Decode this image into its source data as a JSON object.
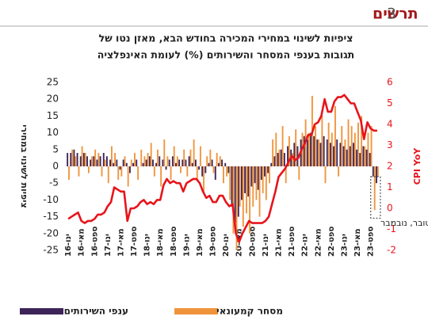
{
  "chart_data": {
    "type": "bar_line",
    "figure_label": "תרשים",
    "figure_number": 3,
    "title": [
      "ציפיות לשינוי במחירי המכירה בחודש הבא, מאזן נטו של",
      "תגובות בענפי המסחר והשירותים (%) לעומת האינפלציה"
    ],
    "ylabel": "ציפיות לשינוי במחירי",
    "y2label": "CPI YoY",
    "annotation": "אוקטובר, נובמבר",
    "categories": [
      "ינו-16",
      null,
      null,
      null,
      "מאי-16",
      null,
      null,
      null,
      "ספט-16",
      null,
      null,
      null,
      "ינו-17",
      null,
      null,
      null,
      "מאי-17",
      null,
      null,
      null,
      "ספט-17",
      null,
      null,
      null,
      "ינו-18",
      null,
      null,
      null,
      "מאי-18",
      null,
      null,
      null,
      "ספט-18",
      null,
      null,
      null,
      "ינו-19",
      null,
      null,
      null,
      "מאי-19",
      null,
      null,
      null,
      "ספט-19",
      null,
      null,
      null,
      "ינו-20",
      null,
      null,
      null,
      "מאי-20",
      null,
      null,
      null,
      "ספט-20",
      null,
      null,
      null,
      "ינו-21",
      null,
      null,
      null,
      "מאי-21",
      null,
      null,
      null,
      "ספט-21",
      null,
      null,
      null,
      "ינו-22",
      null,
      null,
      null,
      "מאי-22",
      null,
      null,
      null,
      "ספט-22",
      null,
      null,
      null,
      "ינו-23",
      null,
      null,
      null,
      "מאי-23",
      null,
      null,
      null,
      "ספט-23",
      null,
      null
    ],
    "series": [
      {
        "name": "ענפי השירותים",
        "color": "#3d2458",
        "values": [
          4,
          4,
          5,
          4,
          3,
          4,
          3,
          2,
          3,
          2,
          3,
          4,
          3,
          2,
          1,
          2,
          -1,
          2,
          1,
          -2,
          1,
          2,
          0,
          1,
          2,
          3,
          2,
          1,
          3,
          2,
          -1,
          2,
          3,
          1,
          2,
          2,
          2,
          3,
          1,
          2,
          -1,
          -3,
          -2,
          1,
          2,
          -4,
          1,
          2,
          1,
          -2,
          -12,
          -18,
          -15,
          -10,
          -8,
          -9,
          -6,
          -5,
          -7,
          -4,
          -3,
          -2,
          1,
          3,
          4,
          5,
          4,
          6,
          5,
          7,
          6,
          8,
          9,
          8,
          10,
          9,
          8,
          7,
          9,
          8,
          7,
          6,
          8,
          7,
          6,
          5,
          6,
          7,
          5,
          4,
          6,
          5,
          4,
          -3,
          -5
        ]
      },
      {
        "name": "מסחר קמעונאי",
        "color": "#f0943c",
        "values": [
          -4,
          5,
          3,
          -3,
          6,
          4,
          -2,
          3,
          5,
          4,
          -3,
          2,
          -5,
          6,
          4,
          -4,
          -3,
          3,
          -6,
          2,
          4,
          -4,
          5,
          3,
          4,
          7,
          -3,
          5,
          -6,
          8,
          3,
          -4,
          6,
          3,
          -2,
          5,
          -3,
          5,
          8,
          -4,
          6,
          -8,
          3,
          5,
          -2,
          4,
          3,
          -5,
          -3,
          -10,
          -20,
          -25,
          -12,
          -18,
          -14,
          -20,
          -12,
          -10,
          -15,
          -8,
          -10,
          -5,
          8,
          10,
          5,
          12,
          -5,
          9,
          4,
          11,
          -4,
          10,
          14,
          10,
          21,
          12,
          8,
          15,
          -5,
          13,
          10,
          18,
          -3,
          12,
          8,
          14,
          12,
          10,
          13,
          15,
          6,
          10,
          12,
          -13,
          -3
        ]
      },
      {
        "name": "CPI YoY",
        "color": "#e8141b",
        "axis": "y2",
        "values": [
          -0.5,
          -0.4,
          -0.3,
          -0.2,
          -0.6,
          -0.7,
          -0.6,
          -0.6,
          -0.5,
          -0.3,
          -0.3,
          -0.2,
          0.1,
          0.3,
          1.0,
          0.9,
          0.8,
          0.8,
          -0.6,
          0.0,
          0.0,
          0.1,
          0.3,
          0.4,
          0.2,
          0.3,
          0.2,
          0.4,
          0.4,
          1.1,
          1.4,
          1.2,
          1.3,
          1.2,
          1.2,
          0.8,
          1.2,
          1.3,
          1.4,
          1.4,
          1.2,
          0.8,
          0.5,
          0.6,
          0.3,
          0.3,
          0.6,
          0.6,
          0.3,
          0.1,
          0.2,
          -1.2,
          -1.6,
          -1.2,
          -0.9,
          -0.6,
          -0.7,
          -0.7,
          -0.7,
          -0.7,
          -0.6,
          -0.4,
          0.2,
          0.8,
          1.5,
          1.7,
          1.9,
          2.2,
          2.5,
          2.3,
          2.4,
          2.8,
          3.1,
          3.5,
          3.5,
          4.0,
          4.1,
          4.4,
          5.2,
          4.6,
          4.6,
          5.1,
          5.3,
          5.3,
          5.4,
          5.2,
          5.0,
          5.0,
          4.6,
          4.2,
          3.3,
          4.1,
          3.8,
          3.7,
          3.7
        ]
      }
    ],
    "ylim": [
      -25,
      25
    ],
    "yticks": [
      -25,
      -20,
      -15,
      -10,
      -5,
      0,
      5,
      10,
      15,
      20,
      25
    ],
    "y2lim": [
      -2,
      6
    ],
    "y2ticks": [
      -2,
      -1,
      0,
      1,
      2,
      3,
      4,
      5,
      6
    ],
    "grid": false
  }
}
